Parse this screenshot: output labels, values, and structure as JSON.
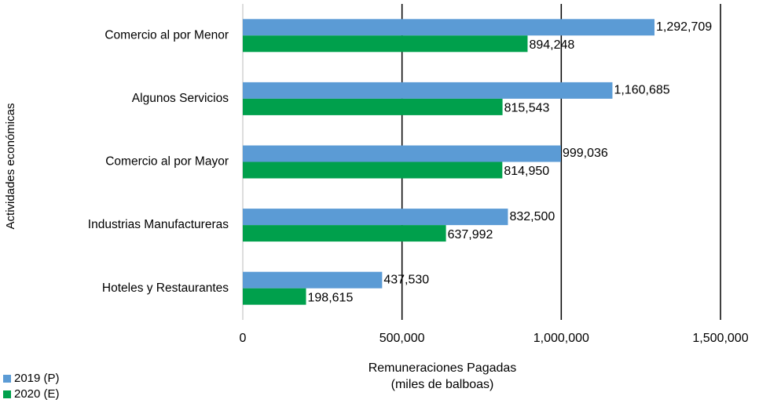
{
  "chart_data": {
    "type": "hbar",
    "ylabel": "Actividades económicas",
    "xlabel": [
      "Remuneraciones Pagadas",
      "(miles de balboas)"
    ],
    "categories": [
      "Comercio al por Menor",
      "Algunos Servicios",
      "Comercio al por Mayor",
      "Industrias Manufactureras",
      "Hoteles y Restaurantes"
    ],
    "series": [
      {
        "name": "2019 (P)",
        "color": "#5b9bd5",
        "values": [
          1292709,
          1160685,
          999036,
          832500,
          437530
        ],
        "value_labels": [
          "1,292,709",
          "1,160,685",
          "999,036",
          "832,500",
          "437,530"
        ]
      },
      {
        "name": "2020 (E)",
        "color": "#00a04c",
        "values": [
          894248,
          815543,
          814950,
          637992,
          198615
        ],
        "value_labels": [
          "894,248",
          "815,543",
          "814,950",
          "637,992",
          "198,615"
        ]
      }
    ],
    "xlim": [
      0,
      1500000
    ],
    "xticks": [
      0,
      {
        "value": 500000,
        "label": "500,000"
      },
      {
        "value": 1000000,
        "label": "1,000,000"
      },
      {
        "value": 1500000,
        "label": "1,500,000"
      }
    ],
    "grid": true,
    "legend": "bottom-left"
  }
}
